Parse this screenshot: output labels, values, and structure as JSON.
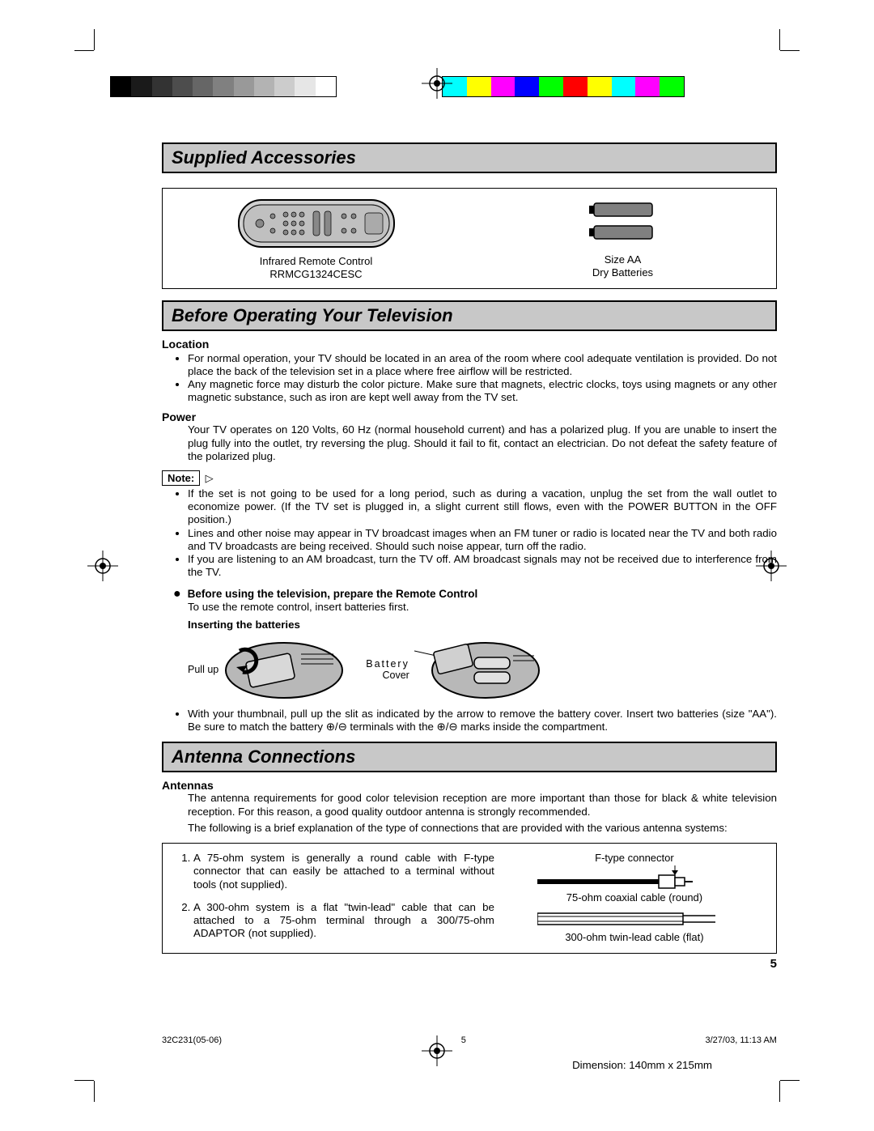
{
  "colorbar": {
    "grayscale": [
      "#000000",
      "#1a1a1a",
      "#333333",
      "#4d4d4d",
      "#666666",
      "#808080",
      "#999999",
      "#b3b3b3",
      "#cccccc",
      "#e6e6e6",
      "#ffffff"
    ],
    "hues": [
      "#00ffff",
      "#ffff00",
      "#ff00ff",
      "#0000ff",
      "#00ff00",
      "#ff0000",
      "#ffff00",
      "#00ffff",
      "#ff00ff",
      "#00ff00"
    ]
  },
  "sections": {
    "supplied": "Supplied Accessories",
    "before": "Before Operating Your Television",
    "antenna": "Antenna Connections"
  },
  "accessories": {
    "remote_line1": "Infrared Remote Control",
    "remote_line2": "RRMCG1324CESC",
    "batt_line1": "Size AA",
    "batt_line2": "Dry Batteries"
  },
  "before": {
    "location_h": "Location",
    "location_b1": "For normal operation, your TV should be located in an area of the room where cool adequate ventilation is provided. Do not place the back of the television set in a place where free airflow will be restricted.",
    "location_b2": "Any magnetic force may disturb the color picture. Make sure that magnets, electric clocks, toys using magnets or any other magnetic substance, such as iron are kept well away from the TV set.",
    "power_h": "Power",
    "power_b": "Your TV operates on 120 Volts, 60 Hz (normal household current) and has a polarized plug. If you are unable to insert the plug fully into the outlet, try reversing the plug. Should it fail to fit, contact an electrician. Do not defeat the safety feature of the polarized plug.",
    "note_label": "Note:",
    "note1": "If the set is not going to be used for a long period, such as during a vacation, unplug the set from the wall outlet to economize power. (If the TV set is plugged in, a slight current still flows, even with the POWER BUTTON in the OFF position.)",
    "note2": "Lines and other noise may appear in TV broadcast images when an FM tuner or radio is located near the TV and both radio and TV broadcasts are being received. Should such noise appear, turn off the radio.",
    "note3": "If you are listening to an AM broadcast, turn the TV off. AM broadcast signals may not be received due to interference from the TV.",
    "prep_h": "Before using the television, prepare the Remote Control",
    "prep_b": "To use the remote control, insert batteries first.",
    "insert_h": "Inserting the batteries",
    "pullup": "Pull up",
    "batt_cover1": "Battery",
    "batt_cover2": "Cover",
    "insert_b": "With your thumbnail, pull up the slit as indicated by the arrow to remove the battery cover. Insert two batteries (size \"AA\"). Be sure to match the battery ⊕/⊖ terminals with the ⊕/⊖ marks inside the compartment."
  },
  "antenna": {
    "h": "Antennas",
    "intro1": "The antenna requirements for good color television reception are more important than those for black & white television reception. For this reason, a good quality outdoor antenna is strongly recommended.",
    "intro2": "The following is a brief explanation of the type of connections that are provided with the various antenna systems:",
    "li1": "A 75-ohm system is generally a round cable with F-type connector that can easily be attached to a terminal without tools (not supplied).",
    "li2": "A 300-ohm system is a flat \"twin-lead\" cable that can be attached to a 75-ohm terminal through a 300/75-ohm ADAPTOR (not supplied).",
    "ftype": "F-type connector",
    "coax": "75-ohm coaxial cable (round)",
    "twin": "300-ohm twin-lead cable (flat)"
  },
  "page_num": "5",
  "footer": {
    "left": "32C231(05-06)",
    "mid": "5",
    "right": "3/27/03, 11:13 AM"
  },
  "dimension": "Dimension: 140mm x 215mm"
}
